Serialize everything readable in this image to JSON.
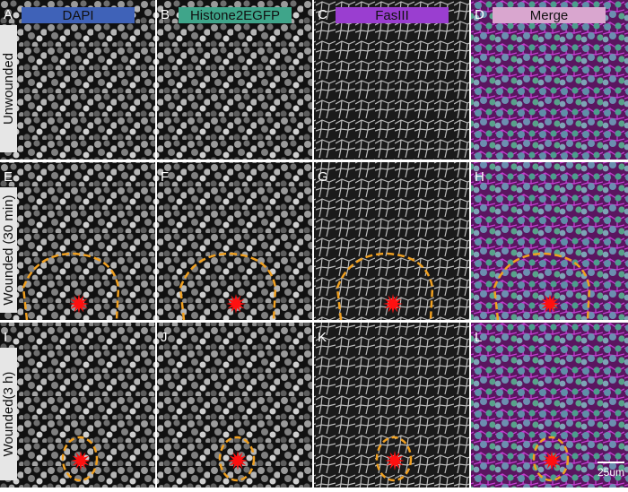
{
  "columns": [
    {
      "label": "DAPI"
    },
    {
      "label": "Histone2EGFP"
    },
    {
      "label": "FasIII"
    },
    {
      "label": "Merge"
    }
  ],
  "rows": [
    {
      "label": "Unwounded"
    },
    {
      "label": "Wounded (30 min)"
    },
    {
      "label": "Wounded(3 h)"
    }
  ],
  "panels": [
    [
      "A",
      "B",
      "C",
      "D"
    ],
    [
      "E",
      "F",
      "G",
      "H"
    ],
    [
      "I",
      "J",
      "K",
      "L"
    ]
  ],
  "scale_bar": "25um"
}
